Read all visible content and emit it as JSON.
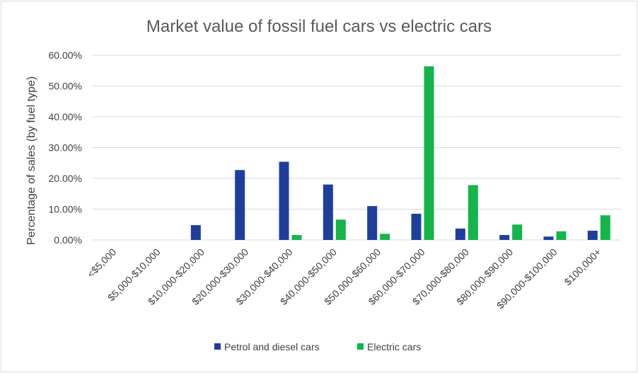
{
  "chart_data": {
    "type": "bar",
    "title": "Market value of fossil fuel cars vs electric cars",
    "xlabel": "",
    "ylabel": "Percentage of sales (by fuel type)",
    "ylim": [
      0,
      60
    ],
    "yticks": [
      "0.00%",
      "10.00%",
      "20.00%",
      "30.00%",
      "40.00%",
      "50.00%",
      "60.00%"
    ],
    "grid": true,
    "legend_position": "bottom",
    "categories": [
      "<$5,000",
      "$5,000-$10,000",
      "$10,000-$20,000",
      "$20,000-$30,000",
      "$30,000-$40,000",
      "$40,000-$50,000",
      "$50,000-$60,000",
      "$60,000-$70,000",
      "$70,000-$80,000",
      "$80,000-$90,000",
      "$90,000-$100,000",
      "$100,000+"
    ],
    "series": [
      {
        "name": "Petrol and diesel cars",
        "color": "#1f3e9c",
        "values": [
          0,
          0,
          4.8,
          22.7,
          25.4,
          18.0,
          11.0,
          8.5,
          3.7,
          1.6,
          1.1,
          3.0
        ]
      },
      {
        "name": "Electric cars",
        "color": "#14b54a",
        "values": [
          0,
          0,
          0,
          0,
          1.6,
          6.6,
          2.0,
          56.4,
          17.8,
          5.0,
          2.8,
          8.0
        ]
      }
    ]
  }
}
